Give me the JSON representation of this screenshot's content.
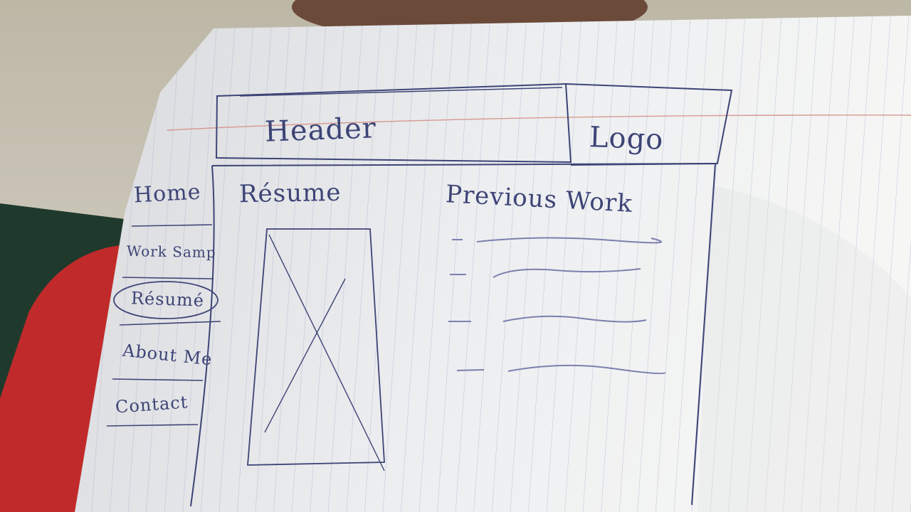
{
  "wireframe": {
    "header": "Header",
    "logo": "Logo",
    "nav": [
      "Home",
      "Work Samp",
      "Résumé",
      "About Me",
      "Contact"
    ],
    "content": {
      "left_title": "Résume",
      "right_title": "Previous Work",
      "list_item_count": 4
    }
  },
  "colors": {
    "paper": "#e9eaec",
    "ink": "#3d4476",
    "margin_rule": "#d48a7f",
    "shirt": "#c02a2a",
    "board": "#1f3a2c",
    "wall": "#cfccc0"
  }
}
